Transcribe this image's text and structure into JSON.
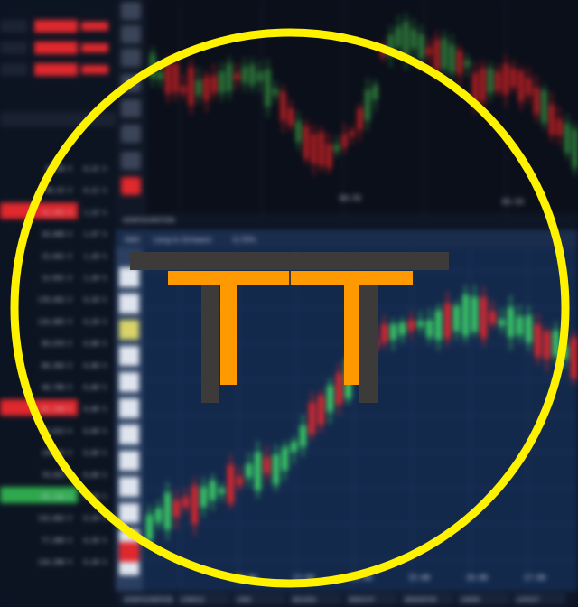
{
  "scene": {
    "description_free": true,
    "colors": {
      "background": "#0b1220",
      "upper_panel": "#0a0f1a",
      "lower_panel": "#13294c",
      "sidebar": "#0c1422",
      "green_candle": "#3bd067",
      "red_candle": "#e0282d",
      "upper_green": "#2e7d3a",
      "upper_red": "#b81e22",
      "yellow_ring": "#fff200",
      "torii_dark": "#3d3b39",
      "torii_orange": "#ff9900"
    }
  },
  "panel_header": {
    "index_label": "DAX",
    "company_label": "Lang & Schwarz",
    "change_label": "0,70%"
  },
  "ticker": {
    "rows": [
      {
        "price": "20,00 €",
        "change": "0,21 %",
        "up": true
      },
      {
        "price": "66,52 €",
        "change": "0,21 %",
        "up": true
      },
      {
        "price": "11,252 €",
        "change": "1,22 %",
        "up": true,
        "highlight": "red"
      },
      {
        "price": "20,068 €",
        "change": "1,97 %",
        "up": true
      },
      {
        "price": "15,841 €",
        "change": "1,20 %",
        "up": true
      },
      {
        "price": "12,651 €",
        "change": "1,20 %",
        "up": true
      },
      {
        "price": "178,042 €",
        "change": "0,20 %",
        "up": true
      },
      {
        "price": "110,865 €",
        "change": "0,20 %",
        "up": true
      },
      {
        "price": "89,076 €",
        "change": "0,80 %",
        "up": true
      },
      {
        "price": "80,303 €",
        "change": "0,80 %",
        "up": true
      },
      {
        "price": "48,780 €",
        "change": "0,80 %",
        "up": true
      },
      {
        "price": "61,148 €",
        "change": "0,80 %",
        "up": true,
        "highlight": "red"
      },
      {
        "price": "70,813 €",
        "change": "0,60 %",
        "up": true
      },
      {
        "price": "145,63 €",
        "change": "0,60 %",
        "up": true
      },
      {
        "price": "78,833 €",
        "change": "0,60 %",
        "up": true
      },
      {
        "price": "95,140 €",
        "change": "0,20 %",
        "up": true,
        "highlight": "green"
      },
      {
        "price": "133,863 €",
        "change": "0,20 %",
        "up": true
      },
      {
        "price": "77,906 €",
        "change": "0,20 %",
        "up": true
      },
      {
        "price": "110,288 €",
        "change": "0,20 %",
        "up": true
      }
    ]
  },
  "axis_labels": {
    "upper_times": [
      "04:55",
      "05:55"
    ],
    "lower_times": [
      "12:00",
      "13:00",
      "14:00",
      "15:00",
      "16:00",
      "17:00"
    ]
  },
  "tabs": [
    "KONFIGURATION",
    "CANDLE",
    "LINIE",
    "BALKEN",
    "ANSICHT",
    "INDIKATOR",
    "LINIEN",
    "LAYOUT"
  ]
}
